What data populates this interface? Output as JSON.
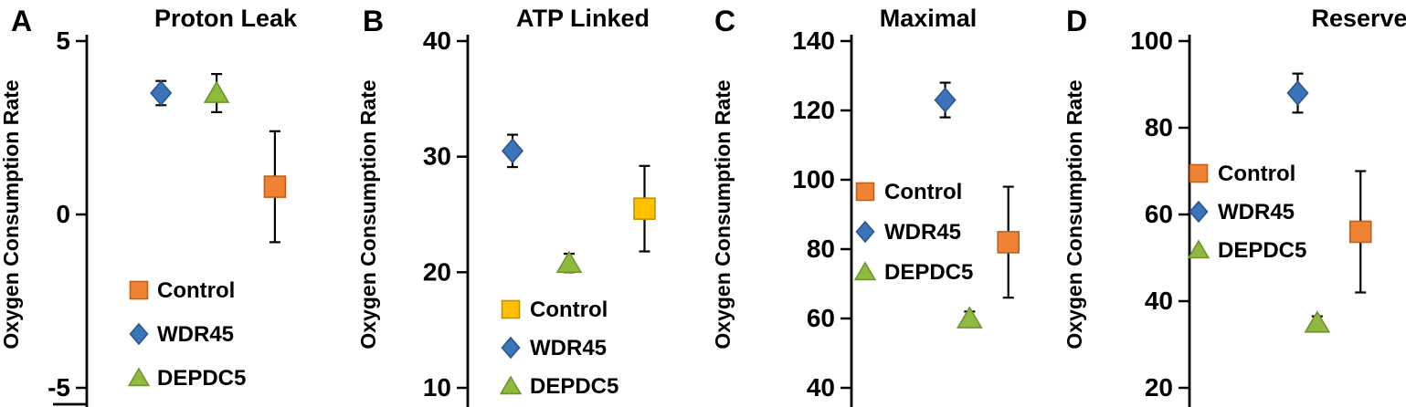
{
  "figure": {
    "description": "Four-panel oxygen consumption rate scatter chart with error bars",
    "panels": [
      "A",
      "B",
      "C",
      "D"
    ]
  },
  "chart_data": [
    {
      "type": "scatter",
      "panel_label": "A",
      "title": "Proton Leak",
      "ylabel": "Oxygen Consumption Rate",
      "ylim": [
        -5,
        5
      ],
      "yticks": [
        5,
        0,
        -5
      ],
      "grid": false,
      "legend_position": "inside-lower-left",
      "legend_entries": [
        "Control",
        "WDR45",
        "DEPDC5"
      ],
      "series_style": {
        "Control": {
          "marker": "square",
          "fill": "#F08233",
          "stroke": "#C05F17"
        },
        "WDR45": {
          "marker": "diamond",
          "fill": "#3C74BA",
          "stroke": "#2B568C"
        },
        "DEPDC5": {
          "marker": "triangle",
          "fill": "#8FBA3E",
          "stroke": "#6E9330"
        }
      },
      "points": [
        {
          "series": "WDR45",
          "value": 3.5,
          "error": 0.35,
          "x_frac": 0.28
        },
        {
          "series": "DEPDC5",
          "value": 3.5,
          "error": 0.55,
          "x_frac": 0.49
        },
        {
          "series": "Control",
          "value": 0.8,
          "error": 1.6,
          "x_frac": 0.71
        }
      ]
    },
    {
      "type": "scatter",
      "panel_label": "B",
      "title": "ATP Linked",
      "ylabel": "Oxygen Consumption Rate",
      "ylim": [
        10,
        40
      ],
      "yticks": [
        40,
        30,
        20,
        10
      ],
      "grid": false,
      "legend_position": "inside-lower-left",
      "legend_entries": [
        "Control",
        "WDR45",
        "DEPDC5"
      ],
      "series_style": {
        "Control": {
          "marker": "square",
          "fill": "#FFC000",
          "stroke": "#BF9000"
        },
        "WDR45": {
          "marker": "diamond",
          "fill": "#3C74BA",
          "stroke": "#2B568C"
        },
        "DEPDC5": {
          "marker": "triangle",
          "fill": "#8FBA3E",
          "stroke": "#6E9330"
        }
      },
      "points": [
        {
          "series": "WDR45",
          "value": 30.5,
          "error": 1.4,
          "x_frac": 0.19
        },
        {
          "series": "DEPDC5",
          "value": 20.8,
          "error": 0.8,
          "x_frac": 0.43
        },
        {
          "series": "Control",
          "value": 25.5,
          "error": 3.7,
          "x_frac": 0.75
        }
      ]
    },
    {
      "type": "scatter",
      "panel_label": "C",
      "title": "Maximal",
      "ylabel": "Oxygen Consumption Rate",
      "ylim": [
        40,
        140
      ],
      "yticks": [
        140,
        120,
        100,
        80,
        60,
        40
      ],
      "grid": false,
      "legend_position": "inside-middle-left",
      "legend_entries": [
        "Control",
        "WDR45",
        "DEPDC5"
      ],
      "series_style": {
        "Control": {
          "marker": "square",
          "fill": "#F08233",
          "stroke": "#C05F17"
        },
        "WDR45": {
          "marker": "diamond",
          "fill": "#3C74BA",
          "stroke": "#2B568C"
        },
        "DEPDC5": {
          "marker": "triangle",
          "fill": "#8FBA3E",
          "stroke": "#6E9330"
        }
      },
      "points": [
        {
          "series": "WDR45",
          "value": 123,
          "error": 5,
          "x_frac": 0.46
        },
        {
          "series": "DEPDC5",
          "value": 60,
          "error": 2,
          "x_frac": 0.58
        },
        {
          "series": "Control",
          "value": 82,
          "error": 16,
          "x_frac": 0.77
        }
      ]
    },
    {
      "type": "scatter",
      "panel_label": "D",
      "title": "Reserve",
      "ylabel": "Oxygen Consumption Rate",
      "ylim": [
        20,
        100
      ],
      "yticks": [
        100,
        80,
        60,
        40,
        20
      ],
      "grid": false,
      "legend_position": "inside-middle-left",
      "legend_entries": [
        "Control",
        "WDR45",
        "DEPDC5"
      ],
      "series_style": {
        "Control": {
          "marker": "square",
          "fill": "#F08233",
          "stroke": "#C05F17"
        },
        "WDR45": {
          "marker": "diamond",
          "fill": "#3C74BA",
          "stroke": "#2B568C"
        },
        "DEPDC5": {
          "marker": "triangle",
          "fill": "#8FBA3E",
          "stroke": "#6E9330"
        }
      },
      "points": [
        {
          "series": "WDR45",
          "value": 88,
          "error": 4.5,
          "x_frac": 0.5
        },
        {
          "series": "DEPDC5",
          "value": 35,
          "error": 1.5,
          "x_frac": 0.59
        },
        {
          "series": "Control",
          "value": 56,
          "error": 14,
          "x_frac": 0.79
        }
      ]
    }
  ]
}
